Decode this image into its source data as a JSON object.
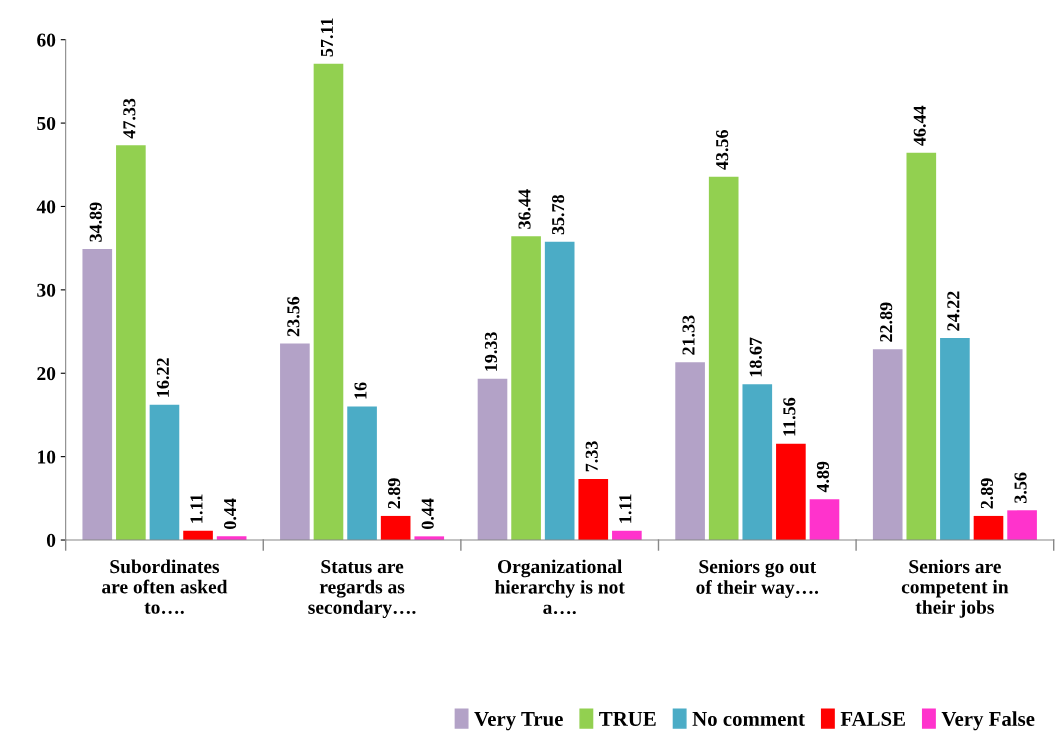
{
  "chart_data": {
    "type": "bar",
    "categories": [
      "Subordinates\nare often asked\nto….",
      "Status are\nregards as\nsecondary….",
      "Organizational\nhierarchy is not\na….",
      "Seniors go out\nof their way….",
      "Seniors are\ncompetent in\ntheir jobs"
    ],
    "series": [
      {
        "name": "Very True",
        "color": "#b3a2c7",
        "values": [
          34.89,
          23.56,
          19.33,
          21.33,
          22.89
        ]
      },
      {
        "name": "TRUE",
        "color": "#92d050",
        "values": [
          47.33,
          57.11,
          36.44,
          43.56,
          46.44
        ]
      },
      {
        "name": "No comment",
        "color": "#4bacc6",
        "values": [
          16.22,
          16,
          35.78,
          18.67,
          24.22
        ]
      },
      {
        "name": "FALSE",
        "color": "#ff0000",
        "values": [
          1.11,
          2.89,
          7.33,
          11.56,
          2.89
        ]
      },
      {
        "name": "Very False",
        "color": "#ff33cc",
        "values": [
          0.44,
          0.44,
          1.11,
          4.89,
          3.56
        ]
      }
    ],
    "ylim": [
      0,
      60
    ],
    "yticks": [
      0,
      10,
      20,
      30,
      40,
      50,
      60
    ],
    "data_labels": true,
    "legend": "bottom right",
    "grid": false
  }
}
